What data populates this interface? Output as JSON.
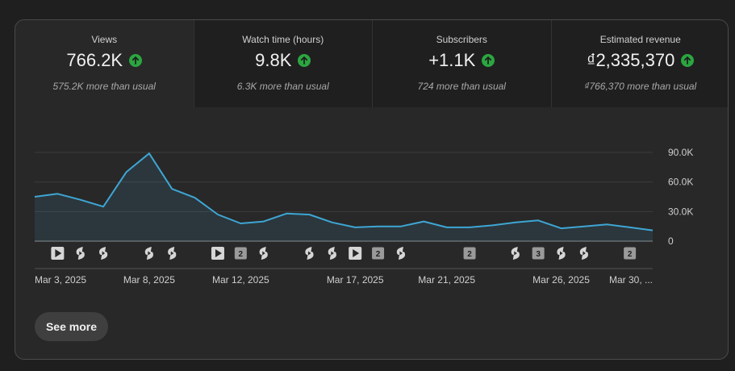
{
  "tabs": [
    {
      "label": "Views",
      "value": "766.2K",
      "sub": "575.2K more than usual"
    },
    {
      "label": "Watch time (hours)",
      "value": "9.8K",
      "sub": "6.3K more than usual"
    },
    {
      "label": "Subscribers",
      "value": "+1.1K",
      "sub": "724 more than usual"
    },
    {
      "label": "Estimated revenue",
      "value": "₫2,335,370",
      "sub": "₫766,370 more than usual"
    }
  ],
  "see_more_label": "See more",
  "colors": {
    "line": "#3ea6d4",
    "up": "#2ba640",
    "background": "#282828"
  },
  "chart_data": {
    "type": "area",
    "title": "",
    "xlabel": "",
    "ylabel": "",
    "ylim": [
      0,
      90000
    ],
    "y_ticks": [
      {
        "value": 90000,
        "label": "90.0K"
      },
      {
        "value": 60000,
        "label": "60.0K"
      },
      {
        "value": 30000,
        "label": "30.0K"
      },
      {
        "value": 0,
        "label": "0"
      }
    ],
    "x": [
      "Mar 3",
      "Mar 4",
      "Mar 5",
      "Mar 6",
      "Mar 7",
      "Mar 8",
      "Mar 9",
      "Mar 10",
      "Mar 11",
      "Mar 12",
      "Mar 13",
      "Mar 14",
      "Mar 15",
      "Mar 16",
      "Mar 17",
      "Mar 18",
      "Mar 19",
      "Mar 20",
      "Mar 21",
      "Mar 22",
      "Mar 23",
      "Mar 24",
      "Mar 25",
      "Mar 26",
      "Mar 27",
      "Mar 28",
      "Mar 29",
      "Mar 30"
    ],
    "values": [
      45000,
      48000,
      42000,
      35000,
      70000,
      89000,
      53000,
      44000,
      27000,
      18000,
      20000,
      28000,
      27000,
      19000,
      14000,
      15000,
      15000,
      20000,
      14000,
      14000,
      16000,
      19000,
      21000,
      13000,
      15000,
      17000,
      14000,
      11000
    ],
    "x_tick_labels": [
      {
        "index": 0,
        "label": "Mar 3, 2025"
      },
      {
        "index": 5,
        "label": "Mar 8, 2025"
      },
      {
        "index": 9,
        "label": "Mar 12, 2025"
      },
      {
        "index": 14,
        "label": "Mar 17, 2025"
      },
      {
        "index": 18,
        "label": "Mar 21, 2025"
      },
      {
        "index": 23,
        "label": "Mar 26, 2025"
      },
      {
        "index": 27,
        "label": "Mar 30, ..."
      }
    ],
    "markers": [
      {
        "index": 1,
        "icon": "video-play-icon",
        "label": ""
      },
      {
        "index": 2,
        "icon": "shorts-icon",
        "label": ""
      },
      {
        "index": 3,
        "icon": "shorts-icon",
        "label": ""
      },
      {
        "index": 5,
        "icon": "shorts-icon",
        "label": ""
      },
      {
        "index": 6,
        "icon": "shorts-icon",
        "label": ""
      },
      {
        "index": 8,
        "icon": "video-play-icon",
        "label": ""
      },
      {
        "index": 9,
        "icon": "count-badge",
        "label": "2"
      },
      {
        "index": 10,
        "icon": "shorts-icon",
        "label": ""
      },
      {
        "index": 12,
        "icon": "shorts-icon",
        "label": ""
      },
      {
        "index": 13,
        "icon": "shorts-icon",
        "label": ""
      },
      {
        "index": 14,
        "icon": "video-play-icon",
        "label": ""
      },
      {
        "index": 15,
        "icon": "count-badge",
        "label": "2"
      },
      {
        "index": 16,
        "icon": "shorts-icon",
        "label": ""
      },
      {
        "index": 19,
        "icon": "count-badge",
        "label": "2"
      },
      {
        "index": 21,
        "icon": "shorts-icon",
        "label": ""
      },
      {
        "index": 22,
        "icon": "count-badge",
        "label": "3"
      },
      {
        "index": 23,
        "icon": "shorts-icon",
        "label": ""
      },
      {
        "index": 24,
        "icon": "shorts-icon",
        "label": ""
      },
      {
        "index": 26,
        "icon": "count-badge",
        "label": "2"
      }
    ],
    "grid": true
  }
}
